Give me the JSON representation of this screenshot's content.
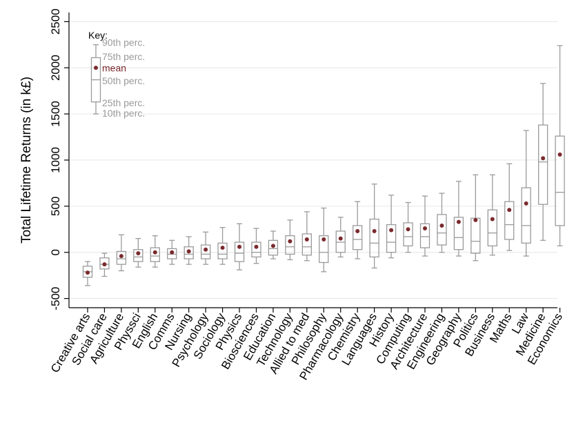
{
  "chart_data": {
    "type": "boxplot",
    "ylabel": "Total Lifetime Returns (in k£)",
    "xlabel": "",
    "ylim": [
      -600,
      2600
    ],
    "yticks": [
      -500,
      0,
      500,
      1000,
      1500,
      2000,
      2500
    ],
    "grid": "horizontal",
    "colors": {
      "box": "#9a9a9a",
      "mean": "#7b2a2e",
      "grid": "#e6e6e6",
      "axis": "#000000"
    },
    "categories": [
      "Creative arts",
      "Social care",
      "Agriculture",
      "Physsci",
      "English",
      "Comms",
      "Nursing",
      "Psychology",
      "Sociology",
      "Physics",
      "Biosciences",
      "Education",
      "Technology",
      "Allied to med",
      "Philosophy",
      "Pharmacology",
      "Chemistry",
      "Languages",
      "History",
      "Computing",
      "Architecture",
      "Engineering",
      "Geography",
      "Politics",
      "Business",
      "Maths",
      "Law",
      "Medicine",
      "Economics"
    ],
    "series": [
      {
        "name": "10th perc.",
        "values": [
          -360,
          -260,
          -200,
          -160,
          -160,
          -130,
          -130,
          -130,
          -130,
          -190,
          -120,
          -70,
          -80,
          -90,
          -210,
          -50,
          -70,
          -170,
          -60,
          0,
          -40,
          0,
          -40,
          -90,
          -30,
          20,
          -40,
          130,
          70
        ]
      },
      {
        "name": "25th perc.",
        "values": [
          -270,
          -180,
          -130,
          -100,
          -100,
          -70,
          -70,
          -70,
          -70,
          -100,
          -50,
          -30,
          -20,
          -30,
          -110,
          0,
          30,
          -50,
          0,
          70,
          50,
          80,
          30,
          -10,
          70,
          140,
          100,
          520,
          290
        ]
      },
      {
        "name": "50th perc.",
        "values": [
          -210,
          -130,
          -70,
          -50,
          -40,
          -20,
          -20,
          -20,
          -20,
          -10,
          0,
          40,
          60,
          60,
          0,
          110,
          140,
          100,
          110,
          170,
          170,
          210,
          160,
          120,
          210,
          300,
          290,
          980,
          650
        ]
      },
      {
        "name": "mean",
        "values": [
          -220,
          -130,
          -40,
          -10,
          0,
          0,
          10,
          30,
          50,
          60,
          60,
          70,
          120,
          140,
          140,
          150,
          230,
          230,
          240,
          250,
          260,
          290,
          330,
          350,
          360,
          460,
          530,
          1020,
          1060
        ]
      },
      {
        "name": "75th perc.",
        "values": [
          -150,
          -60,
          10,
          30,
          50,
          40,
          60,
          80,
          100,
          110,
          110,
          130,
          180,
          200,
          180,
          230,
          290,
          360,
          300,
          320,
          310,
          410,
          380,
          370,
          460,
          550,
          700,
          1380,
          1260
        ]
      },
      {
        "name": "90th perc.",
        "values": [
          -100,
          -10,
          190,
          150,
          180,
          130,
          170,
          220,
          270,
          310,
          260,
          230,
          350,
          440,
          480,
          380,
          550,
          740,
          620,
          540,
          610,
          640,
          770,
          840,
          840,
          960,
          1320,
          1830,
          2240
        ]
      }
    ],
    "legend": {
      "title": "Key:",
      "placement": "top-left",
      "example": {
        "p10": 1500,
        "p25": 1630,
        "p50": 1870,
        "mean": 2000,
        "p75": 2110,
        "p90": 2250
      },
      "labels": {
        "p90": "90th perc.",
        "p75": "75th perc.",
        "mean": "mean",
        "p50": "50th perc.",
        "p25": "25th perc.",
        "p10": "10th perc."
      }
    }
  }
}
